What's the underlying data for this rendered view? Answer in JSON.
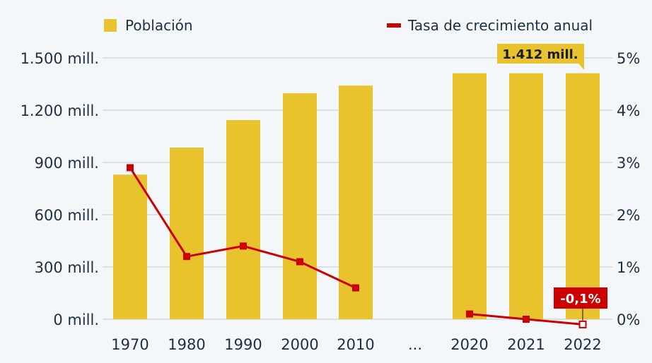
{
  "chart_data": {
    "type": "bar",
    "categories": [
      "1970",
      "1980",
      "1990",
      "2000",
      "2010",
      "...",
      "2020",
      "2021",
      "2022"
    ],
    "series": [
      {
        "name": "Población",
        "type": "bar",
        "axis": "left",
        "color": "#e8c32e",
        "values": [
          830,
          985,
          1143,
          1297,
          1341,
          null,
          1412,
          1412,
          1412
        ]
      },
      {
        "name": "Tasa de crecimiento anual",
        "type": "line",
        "axis": "right",
        "color": "#cc0000",
        "values": [
          2.9,
          1.2,
          1.4,
          1.1,
          0.6,
          null,
          0.1,
          0.0,
          -0.1
        ]
      }
    ],
    "left_axis": {
      "ylim": [
        0,
        1500
      ],
      "ticks": [
        0,
        300,
        600,
        900,
        1200,
        1500
      ],
      "tick_labels": [
        "0 mill.",
        "300 mill.",
        "600 mill.",
        "900 mill.",
        "1.200 mill.",
        "1.500 mill."
      ]
    },
    "right_axis": {
      "ylim": [
        0,
        5
      ],
      "tick_labels": [
        "0%",
        "1%",
        "2%",
        "3%",
        "4%",
        "5%"
      ]
    },
    "annotations": {
      "population_2022": "1.412 mill.",
      "growth_2022": "-0,1%"
    },
    "legend_position": "top",
    "grid": true,
    "colors": {
      "bar": "#e8c32e",
      "line": "#cc0000",
      "grid": "#c9d4dd",
      "text": "#1f2f3f",
      "background": "#f3f7fa"
    }
  }
}
